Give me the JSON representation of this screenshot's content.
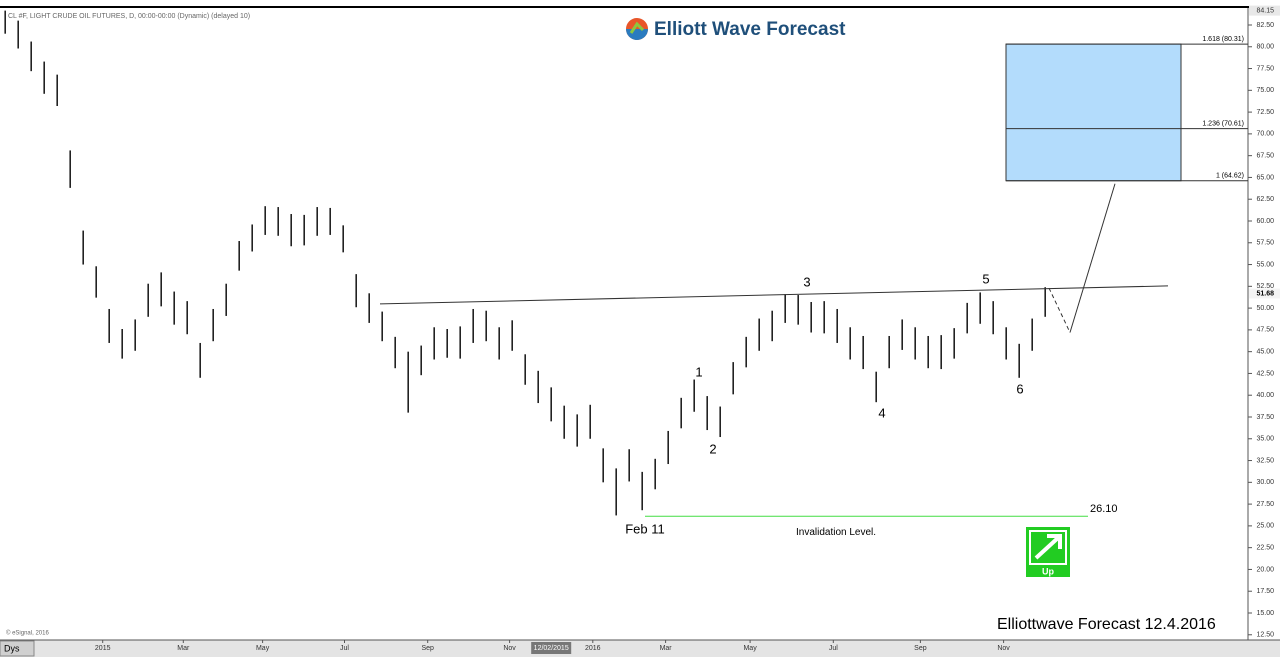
{
  "chart_data": {
    "type": "ohlc",
    "title": "Elliott Wave Forecast",
    "symbol_header": "CL #F, LIGHT CRUDE OIL FUTURES, D, 00:00-00:00 (Dynamic) (delayed 10)",
    "footer": "Elliottwave Forecast 12.4.2016",
    "copyright": "© eSignal, 2016",
    "period_button": "Dys",
    "low": [
      81.5,
      79.8,
      77.2,
      74.6,
      73.2,
      63.8,
      55.0,
      51.2,
      46.0,
      44.2,
      45.1,
      49.0,
      50.2,
      48.1,
      47.0,
      42.0,
      46.2,
      49.1,
      54.3,
      56.5,
      58.4,
      58.3,
      57.1,
      57.2,
      58.3,
      58.4,
      56.4,
      50.1,
      48.3,
      46.2,
      43.1,
      38.0,
      42.3,
      44.1,
      44.3,
      44.2,
      46.0,
      46.2,
      44.1,
      45.1,
      41.2,
      39.1,
      37.0,
      35.0,
      34.1,
      35.0,
      30.0,
      26.2,
      30.1,
      26.8,
      29.2,
      32.1,
      36.2,
      38.1,
      36.0,
      35.2,
      40.1,
      43.2,
      45.1,
      46.2,
      48.3,
      48.1,
      47.2,
      47.1,
      46.0,
      44.1,
      43.0,
      39.2,
      43.1,
      45.2,
      44.1,
      43.1,
      43.0,
      44.2,
      47.1,
      48.2,
      47.0,
      44.1,
      42.0,
      45.1,
      49.0
    ],
    "high": [
      84.15,
      83.0,
      80.6,
      78.3,
      76.8,
      68.1,
      58.9,
      54.8,
      49.9,
      47.6,
      48.7,
      52.8,
      54.1,
      51.9,
      50.8,
      46.0,
      49.9,
      52.8,
      57.7,
      59.6,
      61.7,
      61.6,
      60.8,
      60.7,
      61.6,
      61.5,
      59.5,
      53.9,
      51.7,
      49.6,
      46.7,
      45.0,
      45.7,
      47.8,
      47.6,
      47.9,
      49.9,
      49.7,
      47.8,
      48.6,
      44.7,
      42.8,
      40.9,
      38.8,
      37.8,
      38.9,
      33.9,
      31.6,
      33.8,
      31.2,
      32.7,
      35.9,
      39.7,
      41.8,
      39.9,
      38.7,
      43.8,
      46.7,
      48.8,
      49.7,
      51.6,
      51.5,
      50.7,
      50.8,
      49.9,
      47.8,
      46.8,
      42.7,
      46.8,
      48.7,
      47.8,
      46.8,
      46.9,
      47.7,
      50.6,
      51.8,
      50.8,
      47.8,
      45.9,
      48.8,
      52.4
    ],
    "xlim": [
      -0.4,
      95.6
    ],
    "xticks": [
      {
        "value": 7.5,
        "label": "2015"
      },
      {
        "value": 13.7,
        "label": "Mar"
      },
      {
        "value": 19.8,
        "label": "May"
      },
      {
        "value": 26.1,
        "label": "Jul"
      },
      {
        "value": 32.5,
        "label": "Sep"
      },
      {
        "value": 38.8,
        "label": "Nov"
      },
      {
        "value": 42,
        "label": "12/02/2015"
      },
      {
        "value": 45.2,
        "label": "2016"
      },
      {
        "value": 50.8,
        "label": "Mar"
      },
      {
        "value": 57.3,
        "label": "May"
      },
      {
        "value": 63.7,
        "label": "Jul"
      },
      {
        "value": 70.4,
        "label": "Sep"
      },
      {
        "value": 76.8,
        "label": "Nov"
      }
    ],
    "ylim": [
      11.9,
      84.45
    ],
    "yticks": [
      {
        "value": 82.5,
        "label": "82.50"
      },
      {
        "value": 80,
        "label": "80.00"
      },
      {
        "value": 77.5,
        "label": "77.50"
      },
      {
        "value": 75,
        "label": "75.00"
      },
      {
        "value": 72.5,
        "label": "72.50"
      },
      {
        "value": 70,
        "label": "70.00"
      },
      {
        "value": 67.5,
        "label": "67.50"
      },
      {
        "value": 65,
        "label": "65.00"
      },
      {
        "value": 62.5,
        "label": "62.50"
      },
      {
        "value": 60,
        "label": "60.00"
      },
      {
        "value": 57.5,
        "label": "57.50"
      },
      {
        "value": 55,
        "label": "55.00"
      },
      {
        "value": 52.5,
        "label": "52.50"
      },
      {
        "value": 50,
        "label": "50.00"
      },
      {
        "value": 47.5,
        "label": "47.50"
      },
      {
        "value": 45,
        "label": "45.00"
      },
      {
        "value": 42.5,
        "label": "42.50"
      },
      {
        "value": 40,
        "label": "40.00"
      },
      {
        "value": 37.5,
        "label": "37.50"
      },
      {
        "value": 35,
        "label": "35.00"
      },
      {
        "value": 32.5,
        "label": "32.50"
      },
      {
        "value": 30,
        "label": "30.00"
      },
      {
        "value": 27.5,
        "label": "27.50"
      },
      {
        "value": 25,
        "label": "25.00"
      },
      {
        "value": 22.5,
        "label": "22.50"
      },
      {
        "value": 20,
        "label": "20.00"
      },
      {
        "value": 17.5,
        "label": "17.50"
      },
      {
        "value": 15,
        "label": "15.00"
      },
      {
        "value": 12.5,
        "label": "12.50"
      }
    ],
    "top_price": {
      "value": 84.15,
      "label": "84.15"
    },
    "last_price": {
      "value": 51.68,
      "label": "51.68"
    },
    "trendline": [
      50.48,
      52.55
    ],
    "fib_levels": [
      {
        "value": 80.31,
        "label": "1.618 (80.31)"
      },
      {
        "value": 70.61,
        "label": "1.236 (70.61)"
      },
      {
        "value": 64.62,
        "label": "1 (64.62)"
      }
    ],
    "projection": [
      52.3,
      47.2,
      64.62
    ],
    "invalidation": {
      "value": 26.1,
      "label": "26.10",
      "text": "Invalidation Level."
    },
    "wave_labels": [
      "1",
      "2",
      "3",
      "4",
      "5",
      "6",
      "Feb 11"
    ],
    "signal": "Up"
  }
}
